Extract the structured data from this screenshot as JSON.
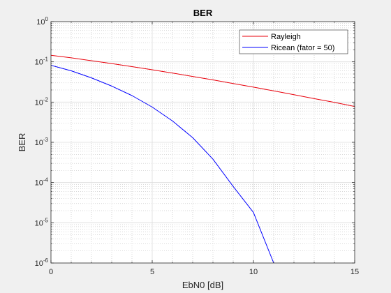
{
  "chart_data": {
    "type": "line",
    "title": "BER",
    "xlabel": "EbN0 [dB]",
    "ylabel": "BER",
    "xlim": [
      0,
      15
    ],
    "ylim": [
      1e-06,
      1
    ],
    "yscale": "log",
    "grid": "on (major and minor)",
    "legend_position": "top-right",
    "x_ticks": [
      "0",
      "5",
      "10",
      "15"
    ],
    "y_ticks": [
      {
        "base": "10",
        "exp": "0"
      },
      {
        "base": "10",
        "exp": "-1"
      },
      {
        "base": "10",
        "exp": "-2"
      },
      {
        "base": "10",
        "exp": "-3"
      },
      {
        "base": "10",
        "exp": "-4"
      },
      {
        "base": "10",
        "exp": "-5"
      },
      {
        "base": "10",
        "exp": "-6"
      }
    ],
    "series": [
      {
        "name": "Rayleigh",
        "color": "#e8000b",
        "x": [
          0,
          1,
          2,
          3,
          4,
          5,
          6,
          7,
          8,
          9,
          10,
          11,
          12,
          13,
          14,
          15
        ],
        "y": [
          0.146,
          0.126,
          0.107,
          0.0906,
          0.0762,
          0.0636,
          0.0527,
          0.0434,
          0.0356,
          0.029,
          0.0235,
          0.019,
          0.0153,
          0.0122,
          0.0098,
          0.0078
        ]
      },
      {
        "name": "Ricean (fator = 50)",
        "color": "#0000ff",
        "x": [
          0,
          1,
          2,
          3,
          4,
          5,
          6,
          7,
          8,
          9,
          10,
          11
        ],
        "y": [
          0.082,
          0.06,
          0.04,
          0.025,
          0.0145,
          0.0075,
          0.0034,
          0.0013,
          0.00038,
          8e-05,
          1.8e-05,
          1e-06
        ]
      }
    ]
  }
}
